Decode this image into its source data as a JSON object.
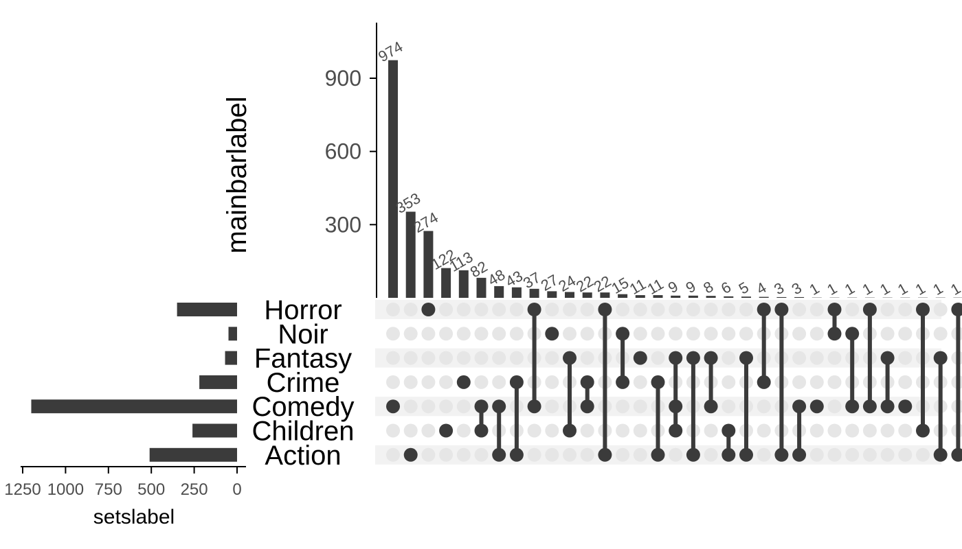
{
  "chart_data": {
    "type": "upset",
    "ylabel": "mainbarlabel",
    "xlabel": "setslabel",
    "colors": {
      "bar": "#3b3b3b",
      "dot_on": "#3b3b3b",
      "dot_off": "#e6e6e6",
      "row_shade": "#f2f2f2",
      "tick_text": "#4d4d4d"
    },
    "main_axis": {
      "ylim": [
        0,
        1100
      ],
      "ticks": [
        300,
        600,
        900
      ],
      "tick_labels": [
        "300",
        "600",
        "900"
      ]
    },
    "sets": [
      "Horror",
      "Noir",
      "Fantasy",
      "Crime",
      "Comedy",
      "Children",
      "Action"
    ],
    "set_sizes": [
      350,
      50,
      70,
      220,
      1200,
      260,
      510
    ],
    "set_axis": {
      "xlim": [
        1250,
        0
      ],
      "ticks": [
        1250,
        1000,
        750,
        500,
        250,
        0
      ],
      "tick_labels": [
        "1250",
        "1000",
        "750",
        "500",
        "250",
        "0"
      ]
    },
    "intersections": [
      {
        "label": "974",
        "value": 974,
        "members": [
          "Comedy"
        ]
      },
      {
        "label": "353",
        "value": 353,
        "members": [
          "Action"
        ]
      },
      {
        "label": "274",
        "value": 274,
        "members": [
          "Horror"
        ]
      },
      {
        "label": "122",
        "value": 122,
        "members": [
          "Children"
        ]
      },
      {
        "label": "113",
        "value": 113,
        "members": [
          "Crime"
        ]
      },
      {
        "label": "82",
        "value": 82,
        "members": [
          "Children",
          "Comedy"
        ]
      },
      {
        "label": "48",
        "value": 48,
        "members": [
          "Comedy",
          "Action"
        ]
      },
      {
        "label": "43",
        "value": 43,
        "members": [
          "Crime",
          "Action"
        ]
      },
      {
        "label": "37",
        "value": 37,
        "members": [
          "Horror",
          "Comedy"
        ]
      },
      {
        "label": "27",
        "value": 27,
        "members": [
          "Noir"
        ]
      },
      {
        "label": "24",
        "value": 24,
        "members": [
          "Fantasy",
          "Children"
        ]
      },
      {
        "label": "22",
        "value": 22,
        "members": [
          "Crime",
          "Comedy"
        ]
      },
      {
        "label": "22",
        "value": 22,
        "members": [
          "Horror",
          "Action"
        ]
      },
      {
        "label": "15",
        "value": 15,
        "members": [
          "Noir",
          "Crime"
        ]
      },
      {
        "label": "11",
        "value": 11,
        "members": [
          "Fantasy"
        ]
      },
      {
        "label": "11",
        "value": 11,
        "members": [
          "Crime",
          "Action"
        ]
      },
      {
        "label": "9",
        "value": 9,
        "members": [
          "Fantasy",
          "Comedy",
          "Children"
        ]
      },
      {
        "label": "9",
        "value": 9,
        "members": [
          "Fantasy",
          "Action"
        ]
      },
      {
        "label": "8",
        "value": 8,
        "members": [
          "Fantasy",
          "Comedy"
        ]
      },
      {
        "label": "6",
        "value": 6,
        "members": [
          "Children",
          "Action"
        ]
      },
      {
        "label": "5",
        "value": 5,
        "members": [
          "Fantasy",
          "Action"
        ]
      },
      {
        "label": "4",
        "value": 4,
        "members": [
          "Horror",
          "Crime"
        ]
      },
      {
        "label": "3",
        "value": 3,
        "members": [
          "Horror",
          "Action"
        ]
      },
      {
        "label": "3",
        "value": 3,
        "members": [
          "Comedy",
          "Action"
        ]
      },
      {
        "label": "1",
        "value": 1,
        "members": [
          "Comedy"
        ]
      },
      {
        "label": "1",
        "value": 1,
        "members": [
          "Horror",
          "Noir"
        ]
      },
      {
        "label": "1",
        "value": 1,
        "members": [
          "Noir",
          "Comedy"
        ]
      },
      {
        "label": "1",
        "value": 1,
        "members": [
          "Horror",
          "Comedy"
        ]
      },
      {
        "label": "1",
        "value": 1,
        "members": [
          "Fantasy",
          "Comedy"
        ]
      },
      {
        "label": "1",
        "value": 1,
        "members": [
          "Comedy"
        ]
      },
      {
        "label": "1",
        "value": 1,
        "members": [
          "Horror",
          "Children"
        ]
      },
      {
        "label": "1",
        "value": 1,
        "members": [
          "Fantasy",
          "Action"
        ]
      },
      {
        "label": "1",
        "value": 1,
        "members": [
          "Horror",
          "Action"
        ]
      }
    ]
  }
}
